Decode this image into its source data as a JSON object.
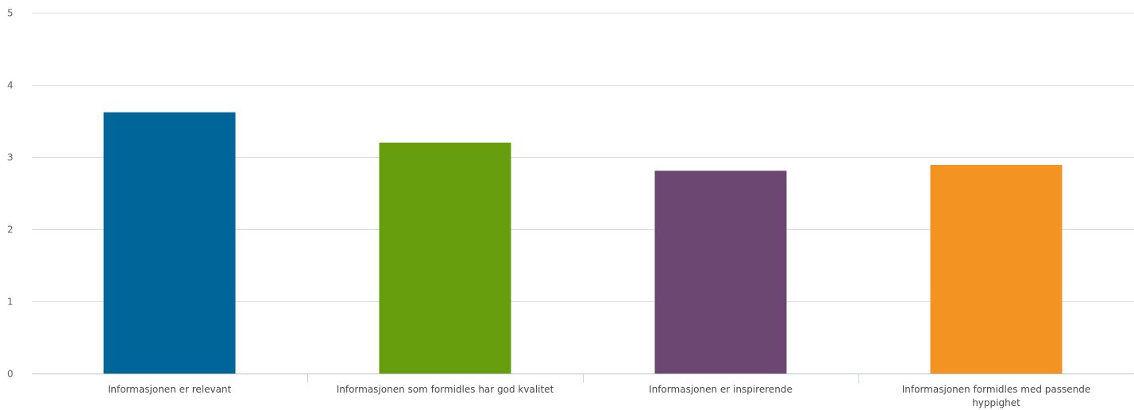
{
  "chart_data": {
    "type": "bar",
    "categories": [
      [
        "Informasjonen er relevant"
      ],
      [
        "Informasjonen som formidles har god kvalitet"
      ],
      [
        "Informasjonen er inspirerende"
      ],
      [
        "Informasjonen formidles med passende",
        "hyppighet"
      ]
    ],
    "values": [
      3.62,
      3.2,
      2.81,
      2.89
    ],
    "colors": [
      "#006699",
      "#669e0d",
      "#6b4772",
      "#f39321"
    ],
    "ylim": [
      0,
      5
    ],
    "yticks": [
      0,
      1,
      2,
      3,
      4,
      5
    ],
    "grid": true,
    "title": "",
    "xlabel": "",
    "ylabel": ""
  }
}
